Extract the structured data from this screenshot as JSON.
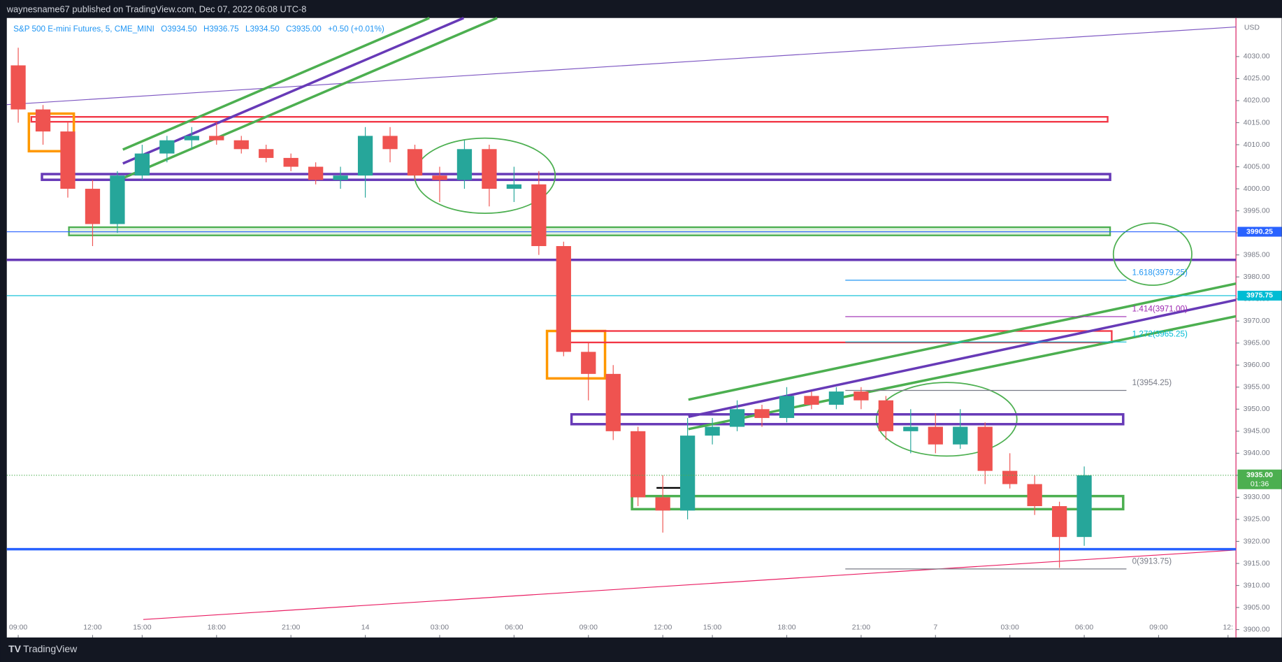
{
  "header": {
    "publisher": "waynesname67 published on TradingView.com, Dec 07, 2022 06:08 UTC-8",
    "symbol": "S&P 500 E-mini Futures, 5, CME_MINI",
    "ohlc": [
      "O3934.50",
      "H3936.75",
      "L3934.50",
      "C3935.00",
      "+0.50 (+0.01%)"
    ]
  },
  "footer": {
    "brand": "TradingView"
  },
  "chart_data": {
    "type": "candlestick",
    "currency": "USD",
    "up_color": "#26a69a",
    "down_color": "#ef5350",
    "ylim": [
      3898.2,
      4038.75
    ],
    "yticks": [
      {
        "value": 4030,
        "label": "4030.00"
      },
      {
        "value": 4025,
        "label": "4025.00"
      },
      {
        "value": 4020,
        "label": "4020.00"
      },
      {
        "value": 4015,
        "label": "4015.00"
      },
      {
        "value": 4010,
        "label": "4010.00"
      },
      {
        "value": 4005,
        "label": "4005.00"
      },
      {
        "value": 4000,
        "label": "4000.00"
      },
      {
        "value": 3995,
        "label": "3995.00"
      },
      {
        "value": 3990,
        "label": "3990.00"
      },
      {
        "value": 3985,
        "label": "3985.00"
      },
      {
        "value": 3980,
        "label": "3980.00"
      },
      {
        "value": 3975,
        "label": "3975.00"
      },
      {
        "value": 3970,
        "label": "3970.00"
      },
      {
        "value": 3965,
        "label": "3965.00"
      },
      {
        "value": 3960,
        "label": "3960.00"
      },
      {
        "value": 3955,
        "label": "3955.00"
      },
      {
        "value": 3950,
        "label": "3950.00"
      },
      {
        "value": 3945,
        "label": "3945.00"
      },
      {
        "value": 3940,
        "label": "3940.00"
      },
      {
        "value": 3935,
        "label": "3935.00"
      },
      {
        "value": 3930,
        "label": "3930.00"
      },
      {
        "value": 3925,
        "label": "3925.00"
      },
      {
        "value": 3920,
        "label": "3920.00"
      },
      {
        "value": 3915,
        "label": "3915.00"
      },
      {
        "value": 3910,
        "label": "3910.00"
      },
      {
        "value": 3905,
        "label": "3905.00"
      },
      {
        "value": 3900,
        "label": "3900.00"
      }
    ],
    "xlim": [
      -0.46,
      49.12
    ],
    "xticks": [
      {
        "value": 0,
        "label": "09:00"
      },
      {
        "value": 3,
        "label": "12:00"
      },
      {
        "value": 5,
        "label": "15:00"
      },
      {
        "value": 8,
        "label": "18:00"
      },
      {
        "value": 11,
        "label": "21:00"
      },
      14,
      {
        "value": 17,
        "label": "03:00"
      },
      {
        "value": 20,
        "label": "06:00"
      },
      {
        "value": 23,
        "label": "09:00"
      },
      {
        "value": 26,
        "label": "12:00"
      },
      {
        "value": 28,
        "label": "15:00"
      },
      {
        "value": 31,
        "label": "18:00"
      },
      {
        "value": 34,
        "label": "21:00"
      },
      {
        "value": 37,
        "label": "7"
      },
      {
        "value": 40,
        "label": "03:00"
      },
      {
        "value": 43,
        "label": "06:00"
      },
      {
        "value": 46,
        "label": "09:00"
      },
      {
        "value": 48.8,
        "label": "12:"
      }
    ],
    "x": [
      0,
      1,
      2,
      3,
      4,
      5,
      6,
      7,
      8,
      9,
      10,
      11,
      12,
      13,
      14,
      15,
      16,
      17,
      18,
      19,
      20,
      21,
      22,
      23,
      24,
      25,
      26,
      27,
      28,
      29,
      30,
      31,
      32,
      33,
      34,
      35,
      36,
      37,
      38,
      39,
      40,
      41,
      42,
      43
    ],
    "open": [
      4028,
      4018,
      4013,
      4000,
      3992,
      4003,
      4008,
      4011,
      4012,
      4011,
      4009,
      4007,
      4005,
      4002,
      4003,
      4012,
      4009,
      4003,
      4002,
      4009,
      4000,
      4001,
      3987,
      3963,
      3958,
      3945,
      3930,
      3927,
      3944,
      3946,
      3950,
      3948,
      3953,
      3951,
      3954,
      3952,
      3945,
      3946,
      3942,
      3946,
      3936,
      3933,
      3928,
      3921
    ],
    "high": [
      4032,
      4019,
      4015,
      4002,
      4004,
      4010,
      4012,
      4014,
      4015,
      4012,
      4010,
      4008,
      4006,
      4005,
      4014,
      4014,
      4010,
      4005,
      4011,
      4010,
      4005,
      4004,
      3988,
      3965,
      3960,
      3946,
      3935,
      3948,
      3948,
      3952,
      3951,
      3955,
      3954,
      3955,
      3955,
      3953,
      3950,
      3949,
      3950,
      3947,
      3940,
      3935,
      3929,
      3937
    ],
    "low": [
      4015,
      4010,
      3998,
      3987,
      3990,
      4002,
      4006,
      4009,
      4010,
      4008,
      4006,
      4004,
      4001,
      4000,
      3998,
      4006,
      4002,
      3997,
      4000,
      3996,
      3997,
      3985,
      3962,
      3952,
      3943,
      3928,
      3922,
      3925,
      3942,
      3945,
      3946,
      3947,
      3950,
      3950,
      3950,
      3943,
      3940,
      3940,
      3941,
      3933,
      3932,
      3926,
      3914,
      3919
    ],
    "close": [
      4018,
      4013,
      4000,
      3992,
      4003,
      4008,
      4011,
      4012,
      4011,
      4009,
      4007,
      4005,
      4002,
      4003,
      4012,
      4009,
      4003,
      4002,
      4009,
      4000,
      4001,
      3987,
      3963,
      3958,
      3945,
      3930,
      3927,
      3944,
      3946,
      3950,
      3948,
      3953,
      3951,
      3954,
      3952,
      3945,
      3946,
      3942,
      3946,
      3936,
      3933,
      3928,
      3921,
      3935
    ],
    "price_lines": [
      {
        "value": 3990.25,
        "label": "3990.25",
        "color": "#2962ff"
      },
      {
        "value": 3975.75,
        "label": "3975.75",
        "color": "#00bcd4"
      }
    ],
    "last_price": {
      "value": 3935,
      "label": "3935.00",
      "countdown": "01:36",
      "color": "#4caf50"
    },
    "fib_levels": [
      {
        "value": 3979.25,
        "label": "1.618(3979.25)",
        "color": "#2196f3"
      },
      {
        "value": 3971,
        "label": "1.414(3971.00)",
        "color": "#9c27b0"
      },
      {
        "value": 3965.25,
        "label": "1.272(3965.25)",
        "color": "#00bcd4"
      },
      {
        "value": 3954.25,
        "label": "1(3954.25)",
        "color": "#787b86"
      },
      {
        "value": 3913.75,
        "label": "0(3913.75)",
        "color": "#787b86"
      }
    ]
  }
}
